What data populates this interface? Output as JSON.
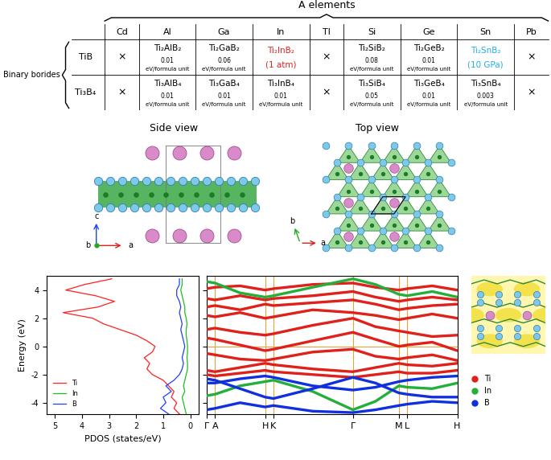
{
  "table": {
    "title": "A elements",
    "row_group": "Binary borides",
    "columns": [
      "Cd",
      "Al",
      "Ga",
      "In",
      "Tl",
      "Si",
      "Ge",
      "Sn",
      "Pb"
    ],
    "rows": [
      {
        "label": "TiB",
        "cells": [
          {
            "text": "×"
          },
          {
            "text": "Ti₂AlB₂",
            "energy": 0.01,
            "unit": "eV/formula unit"
          },
          {
            "text": "Ti₂GaB₂",
            "energy": 0.06,
            "unit": "eV/formula unit"
          },
          {
            "text": "Ti₂InB₂",
            "note": "(1 atm)",
            "color": "#e8231f"
          },
          {
            "text": "×"
          },
          {
            "text": "Ti₂SiB₂",
            "energy": 0.08,
            "unit": "eV/formula unit"
          },
          {
            "text": "Ti₂GeB₂",
            "energy": 0.01,
            "unit": "eV/formula unit"
          },
          {
            "text": "Ti₂SnB₂",
            "note": "(10 GPa)",
            "color": "#29abe2"
          },
          {
            "text": "×"
          }
        ]
      },
      {
        "label": "Ti₃B₄",
        "cells": [
          {
            "text": "×"
          },
          {
            "text": "Ti₃AlB₄",
            "energy": 0.01,
            "unit": "eV/formula unit"
          },
          {
            "text": "Ti₃GaB₄",
            "energy": 0.01,
            "unit": "eV/formula unit"
          },
          {
            "text": "Ti₃InB₄",
            "energy": 0.01,
            "unit": "eV/formula unit"
          },
          {
            "text": "×"
          },
          {
            "text": "Ti₃SiB₄",
            "energy": 0.05,
            "unit": "eV/formula unit"
          },
          {
            "text": "Ti₃GeB₄",
            "energy": 0.01,
            "unit": "eV/formula unit"
          },
          {
            "text": "Ti₃SnB₄",
            "energy": 0.003,
            "unit": "eV/formula unit"
          },
          {
            "text": "×"
          }
        ]
      }
    ]
  },
  "structure": {
    "side_view": {
      "title": "Side view",
      "axis_labels": {
        "a": "a",
        "b": "b",
        "c": "c"
      }
    },
    "top_view": {
      "title": "Top view",
      "axis_labels": {
        "a": "a",
        "b": "b"
      }
    }
  },
  "chart_data": [
    {
      "type": "line",
      "xlabel": "PDOS (states/eV)",
      "ylabel": "Energy (eV)",
      "y": [
        -4.8,
        -4.4,
        -4.0,
        -3.6,
        -3.2,
        -2.8,
        -2.4,
        -2.0,
        -1.6,
        -1.2,
        -0.8,
        -0.4,
        0.0,
        0.4,
        0.8,
        1.2,
        1.6,
        2.0,
        2.4,
        2.8,
        3.2,
        3.6,
        4.0,
        4.4,
        4.8
      ],
      "xlim": [
        5.3,
        -0.3
      ],
      "xticks": [
        5,
        4,
        3,
        2,
        1,
        0
      ],
      "ylim": [
        -4.8,
        5
      ],
      "yticks": [
        -4,
        -2,
        0,
        2,
        4
      ],
      "legend": "lower left",
      "series": [
        {
          "name": "Ti",
          "color": "#ff2020",
          "values": [
            0.4,
            0.6,
            0.5,
            0.7,
            0.6,
            0.8,
            1.0,
            1.4,
            1.6,
            1.5,
            1.7,
            1.4,
            1.3,
            1.6,
            2.0,
            2.6,
            3.2,
            3.6,
            4.7,
            3.4,
            2.8,
            3.5,
            4.6,
            3.9,
            2.9
          ]
        },
        {
          "name": "In",
          "color": "#22bb22",
          "values": [
            0.15,
            0.2,
            0.25,
            0.3,
            0.2,
            0.25,
            0.2,
            0.15,
            0.1,
            0.1,
            0.12,
            0.1,
            0.1,
            0.12,
            0.15,
            0.15,
            0.12,
            0.15,
            0.2,
            0.2,
            0.25,
            0.3,
            0.35,
            0.3,
            0.3
          ]
        },
        {
          "name": "B",
          "color": "#1f3fff",
          "values": [
            0.8,
            1.1,
            0.9,
            1.0,
            0.7,
            0.9,
            0.6,
            0.4,
            0.3,
            0.25,
            0.3,
            0.25,
            0.2,
            0.25,
            0.3,
            0.35,
            0.3,
            0.35,
            0.4,
            0.35,
            0.4,
            0.5,
            0.5,
            0.4,
            0.4
          ]
        }
      ]
    },
    {
      "type": "line",
      "x": [
        0,
        0.1,
        0.4,
        0.7,
        0.8,
        1.27,
        1.75,
        2.02,
        2.3,
        2.4,
        2.7,
        3.0
      ],
      "xlim": [
        0,
        3.0
      ],
      "xticks": [
        {
          "value": 0,
          "label": "Γ"
        },
        {
          "value": 0.1,
          "label": "A"
        },
        {
          "value": 0.7,
          "label": "H"
        },
        {
          "value": 0.8,
          "label": "K"
        },
        {
          "value": 1.75,
          "label": "Γ"
        },
        {
          "value": 2.3,
          "label": "M"
        },
        {
          "value": 2.4,
          "label": "L"
        },
        {
          "value": 3.0,
          "label": "H"
        }
      ],
      "ylim": [
        -4.8,
        5
      ],
      "yticks": [
        -4,
        -2,
        0,
        2,
        4
      ],
      "tick_labels": "x",
      "grid": "x",
      "legend": "lower right",
      "fermi_level": 0,
      "series": [
        {
          "name": "Ti",
          "color": "#e0201b",
          "marker": "o",
          "bands": [
            [
              -1.7,
              -1.8,
              -1.5,
              -1.2,
              -1.3,
              -1.6,
              -1.8,
              -1.5,
              -1.2,
              -1.3,
              -1.4,
              -1.2
            ],
            [
              -0.5,
              -0.6,
              -0.9,
              -1.0,
              -0.9,
              -0.4,
              -0.2,
              -0.7,
              -0.9,
              -0.8,
              -0.6,
              -1.0
            ],
            [
              0.6,
              0.5,
              0.1,
              -0.3,
              -0.2,
              0.4,
              1.0,
              0.5,
              0.0,
              0.1,
              0.3,
              -0.3
            ],
            [
              1.2,
              1.3,
              1.0,
              0.8,
              0.9,
              1.5,
              2.0,
              1.4,
              1.1,
              1.0,
              0.7,
              0.8
            ],
            [
              2.2,
              2.1,
              2.4,
              2.0,
              2.1,
              2.6,
              2.4,
              2.2,
              1.9,
              2.0,
              2.3,
              2.0
            ],
            [
              2.8,
              2.9,
              2.6,
              3.0,
              2.9,
              3.1,
              3.3,
              3.0,
              2.6,
              2.7,
              2.9,
              3.0
            ],
            [
              3.4,
              3.3,
              3.6,
              3.3,
              3.4,
              3.6,
              3.9,
              3.5,
              3.2,
              3.3,
              3.5,
              3.3
            ],
            [
              4.1,
              4.2,
              4.3,
              4.0,
              4.1,
              4.4,
              4.5,
              4.2,
              4.0,
              4.1,
              4.3,
              4.0
            ],
            [
              -2.0,
              -2.1,
              -1.9,
              -1.7,
              -1.8,
              -2.0,
              -2.2,
              -2.0,
              -1.8,
              -1.9,
              -1.9,
              -1.7
            ]
          ]
        },
        {
          "name": "In",
          "color": "#22b03a",
          "marker": "o",
          "bands": [
            [
              -3.5,
              -3.4,
              -2.8,
              -2.5,
              -2.4,
              -3.2,
              -4.5,
              -3.9,
              -2.8,
              -2.9,
              -3.0,
              -2.6
            ],
            [
              4.6,
              4.5,
              3.8,
              3.5,
              3.6,
              4.2,
              4.8,
              4.4,
              3.7,
              3.6,
              3.9,
              3.5
            ]
          ]
        },
        {
          "name": "B",
          "color": "#1030e0",
          "marker": "o",
          "bands": [
            [
              -2.3,
              -2.4,
              -3.0,
              -3.6,
              -3.7,
              -3.0,
              -2.2,
              -2.6,
              -3.3,
              -3.4,
              -3.6,
              -3.6
            ],
            [
              -4.5,
              -4.4,
              -4.0,
              -4.3,
              -4.2,
              -4.6,
              -4.7,
              -4.5,
              -4.2,
              -4.1,
              -3.9,
              -4.0
            ],
            [
              -2.6,
              -2.6,
              -2.3,
              -2.1,
              -2.2,
              -2.8,
              -3.1,
              -2.9,
              -2.5,
              -2.4,
              -2.2,
              -2.1
            ]
          ]
        }
      ]
    }
  ]
}
